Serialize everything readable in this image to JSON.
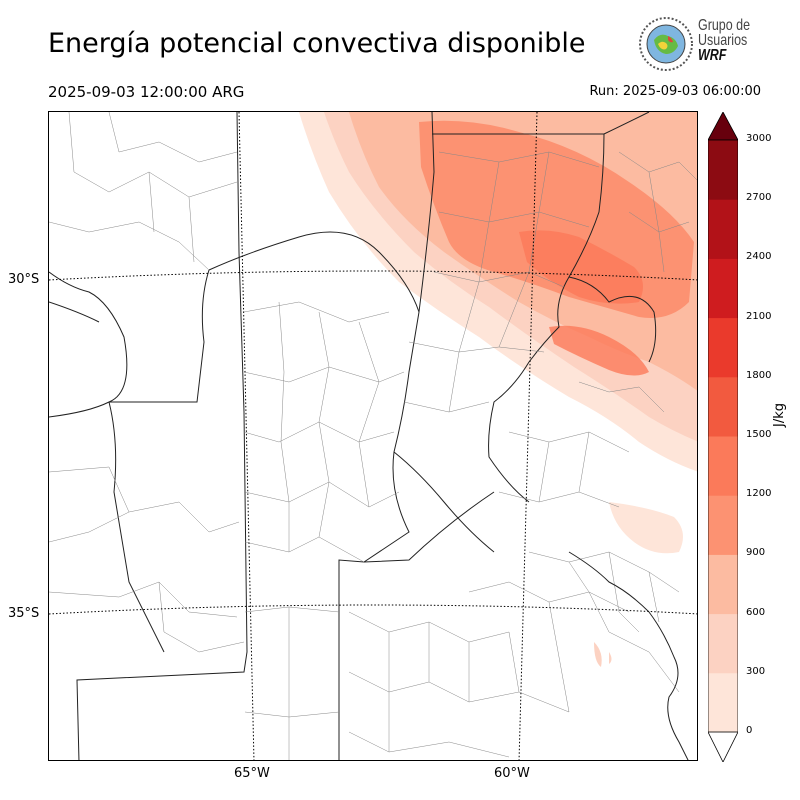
{
  "title": "Energía potencial convectiva disponible",
  "valid_time": "2025-09-03 12:00:00 ARG",
  "run_label": "Run: 2025-09-03 06:00:00",
  "logo": {
    "line1": "Grupo de",
    "line2": "Usuarios",
    "line3": "WRF"
  },
  "map": {
    "lat_labels": [
      "30°S",
      "35°S"
    ],
    "lon_labels": [
      "65°W",
      "60°W"
    ]
  },
  "colorbar": {
    "unit": "J/kg",
    "ticks": [
      "0",
      "300",
      "600",
      "900",
      "1200",
      "1500",
      "1800",
      "2100",
      "2400",
      "2700",
      "3000"
    ],
    "colors": [
      "#fee5d9",
      "#fcd2c2",
      "#fcbba1",
      "#fc9272",
      "#fb7a5a",
      "#f25a3f",
      "#ea3a2c",
      "#cf1c1f",
      "#b21218",
      "#8c0b12"
    ],
    "over_color": "#67000d",
    "under_color": "#ffffff",
    "extend": "both"
  }
}
